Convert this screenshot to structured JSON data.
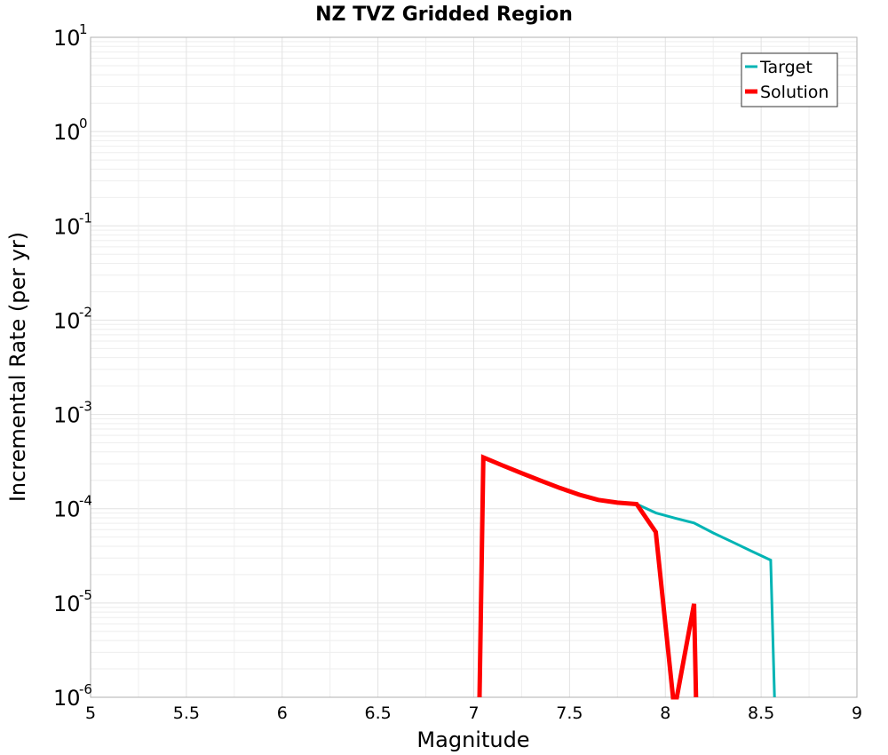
{
  "chart_data": {
    "type": "line",
    "title": "NZ TVZ Gridded Region",
    "xlabel": "Magnitude",
    "ylabel": "Incremental Rate (per yr)",
    "yscale": "log",
    "xlim": [
      5,
      9
    ],
    "ylim": [
      1e-06,
      10
    ],
    "grid": true,
    "legend_position": "top-right",
    "xticks": [
      5,
      5.5,
      6,
      6.5,
      7,
      7.5,
      8,
      8.5,
      9
    ],
    "xtick_labels": [
      "5",
      "5.5",
      "6",
      "6.5",
      "7",
      "7.5",
      "8",
      "8.5",
      "9"
    ],
    "yticks": [
      {
        "value": 1e-06,
        "base": "10",
        "exp": "-6"
      },
      {
        "value": 1e-05,
        "base": "10",
        "exp": "-5"
      },
      {
        "value": 0.0001,
        "base": "10",
        "exp": "-4"
      },
      {
        "value": 0.001,
        "base": "10",
        "exp": "-3"
      },
      {
        "value": 0.01,
        "base": "10",
        "exp": "-2"
      },
      {
        "value": 0.1,
        "base": "10",
        "exp": "-1"
      },
      {
        "value": 1,
        "base": "10",
        "exp": "0"
      },
      {
        "value": 10,
        "base": "10",
        "exp": "1"
      }
    ],
    "series": [
      {
        "name": "Target",
        "color": "#00b4b4",
        "points": [
          [
            7.05,
            0.00035
          ],
          [
            7.15,
            0.000288
          ],
          [
            7.25,
            0.000238
          ],
          [
            7.35,
            0.000198
          ],
          [
            7.45,
            0.000166
          ],
          [
            7.55,
            0.000141
          ],
          [
            7.65,
            0.000124
          ],
          [
            7.75,
            0.000116
          ],
          [
            7.85,
            0.000112
          ],
          [
            7.95,
            9.03e-05
          ],
          [
            8.05,
            7.95e-05
          ],
          [
            8.15,
            7.05e-05
          ],
          [
            8.25,
            5.53e-05
          ],
          [
            8.35,
            4.43e-05
          ],
          [
            8.45,
            3.55e-05
          ],
          [
            8.55,
            2.85e-05
          ],
          [
            8.57,
            1e-06
          ]
        ]
      },
      {
        "name": "Solution",
        "color": "#ff0000",
        "points": [
          [
            7.03,
            1e-06
          ],
          [
            7.05,
            0.00035
          ],
          [
            7.15,
            0.000288
          ],
          [
            7.25,
            0.000238
          ],
          [
            7.35,
            0.000198
          ],
          [
            7.45,
            0.000166
          ],
          [
            7.55,
            0.000141
          ],
          [
            7.65,
            0.000124
          ],
          [
            7.75,
            0.000116
          ],
          [
            7.85,
            0.000112
          ],
          [
            7.95,
            5.65e-05
          ],
          [
            8.04,
            1e-06
          ],
          [
            8.06,
            1e-06
          ],
          [
            8.15,
            9.8e-06
          ],
          [
            8.16,
            1e-06
          ]
        ]
      }
    ]
  }
}
